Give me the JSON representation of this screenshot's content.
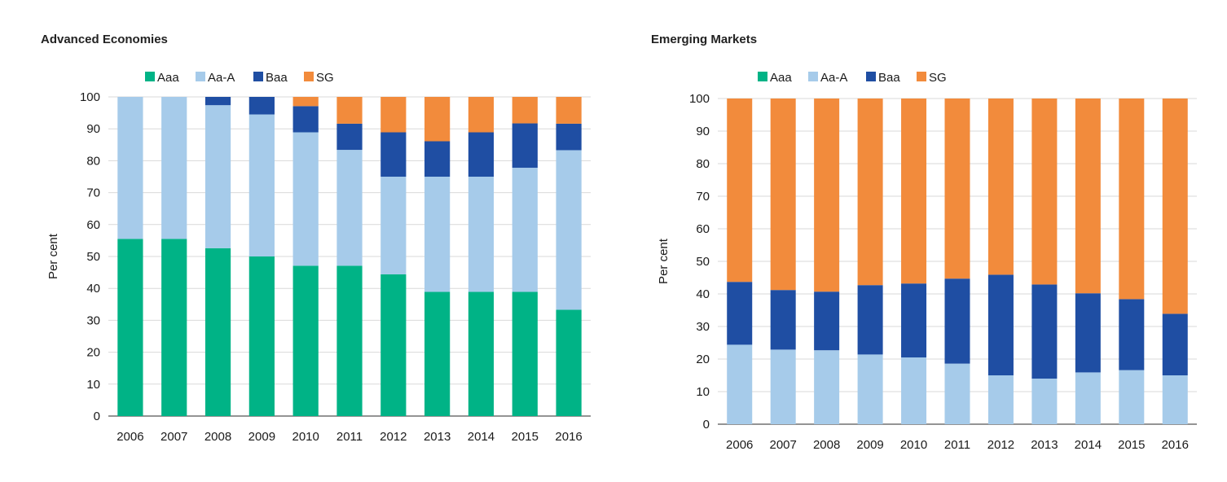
{
  "chart_data": [
    {
      "type": "bar",
      "stacked": true,
      "title": "Advanced Economies",
      "xlabel": "",
      "ylabel": "Per cent",
      "ylim": [
        0,
        100
      ],
      "yticks": [
        0,
        10,
        20,
        30,
        40,
        50,
        60,
        70,
        80,
        90,
        100
      ],
      "grid": true,
      "legend_position": "top",
      "categories": [
        "2006",
        "2007",
        "2008",
        "2009",
        "2010",
        "2011",
        "2012",
        "2013",
        "2014",
        "2015",
        "2016"
      ],
      "series": [
        {
          "name": "Aaa",
          "color": "#00b386",
          "values": [
            55.5,
            55.5,
            52.6,
            50.0,
            47.1,
            47.1,
            44.4,
            38.9,
            38.9,
            38.9,
            33.3
          ]
        },
        {
          "name": "Aa-A",
          "color": "#a6cbea",
          "values": [
            44.5,
            44.5,
            44.8,
            44.5,
            41.8,
            36.3,
            30.6,
            36.1,
            36.1,
            38.9,
            50.0
          ]
        },
        {
          "name": "Baa",
          "color": "#1f4ea3",
          "values": [
            0.0,
            0.0,
            2.6,
            5.5,
            8.2,
            8.2,
            13.9,
            11.1,
            13.9,
            13.9,
            8.3
          ]
        },
        {
          "name": "SG",
          "color": "#f28b3c",
          "values": [
            0.0,
            0.0,
            0.0,
            0.0,
            2.9,
            8.4,
            11.1,
            13.9,
            11.1,
            8.3,
            8.4
          ]
        }
      ]
    },
    {
      "type": "bar",
      "stacked": true,
      "title": "Emerging Markets",
      "xlabel": "",
      "ylabel": "Per cent",
      "ylim": [
        0,
        100
      ],
      "yticks": [
        0,
        10,
        20,
        30,
        40,
        50,
        60,
        70,
        80,
        90,
        100
      ],
      "grid": true,
      "legend_position": "top",
      "categories": [
        "2006",
        "2007",
        "2008",
        "2009",
        "2010",
        "2011",
        "2012",
        "2013",
        "2014",
        "2015",
        "2016"
      ],
      "series": [
        {
          "name": "Aaa",
          "color": "#00b386",
          "values": [
            0,
            0,
            0,
            0,
            0,
            0,
            0,
            0,
            0,
            0,
            0
          ]
        },
        {
          "name": "Aa-A",
          "color": "#a6cbea",
          "values": [
            24.4,
            22.9,
            22.7,
            21.4,
            20.5,
            18.6,
            15.0,
            14.0,
            15.9,
            16.6,
            15.0
          ]
        },
        {
          "name": "Baa",
          "color": "#1f4ea3",
          "values": [
            19.3,
            18.3,
            18.0,
            21.3,
            22.7,
            26.1,
            30.9,
            28.9,
            24.3,
            21.8,
            18.9
          ]
        },
        {
          "name": "SG",
          "color": "#f28b3c",
          "values": [
            56.3,
            58.8,
            59.3,
            57.3,
            56.8,
            55.3,
            54.1,
            57.1,
            59.8,
            61.6,
            66.1
          ]
        }
      ]
    }
  ]
}
